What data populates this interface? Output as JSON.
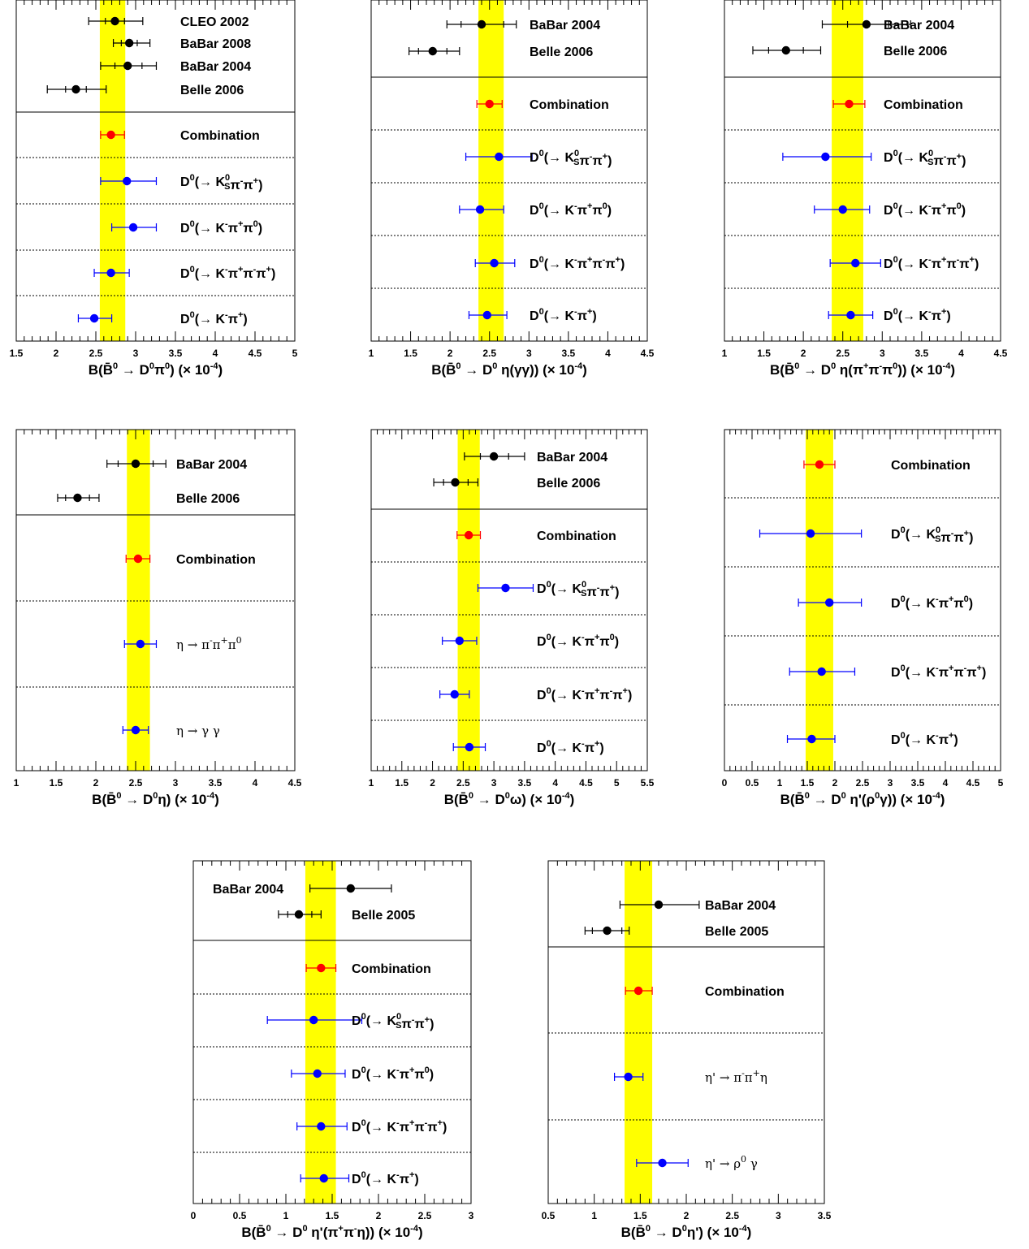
{
  "chart_data": [
    {
      "type": "scatter",
      "xlim": [
        1.5,
        5
      ],
      "ticks": [
        1.5,
        2,
        2.5,
        3,
        3.5,
        4,
        4.5,
        5
      ],
      "tick_labels": [
        "1.5",
        "2",
        "2.5",
        "3",
        "3.5",
        "4",
        "4.5",
        "5"
      ],
      "xlabel": "B(B̄⁰ → D⁰π⁰) (× 10⁻⁴)",
      "band": [
        2.55,
        2.87
      ],
      "n_exp": 4,
      "entries": [
        {
          "label": "CLEO 2002",
          "kind": "exp",
          "value": 2.74,
          "stat": [
            2.62,
            2.86
          ],
          "tot": [
            2.41,
            3.09
          ]
        },
        {
          "label": "BaBar 2008",
          "kind": "exp",
          "value": 2.92,
          "stat": [
            2.82,
            3.02
          ],
          "tot": [
            2.72,
            3.18
          ]
        },
        {
          "label": "BaBar 2004",
          "kind": "exp",
          "value": 2.9,
          "stat": [
            2.74,
            3.08
          ],
          "tot": [
            2.56,
            3.26
          ]
        },
        {
          "label": "Belle 2006",
          "kind": "exp",
          "value": 2.25,
          "stat": [
            2.12,
            2.38
          ],
          "tot": [
            1.89,
            2.63
          ]
        },
        {
          "label": "Combination",
          "kind": "comb",
          "value": 2.69,
          "stat": [
            2.56,
            2.86
          ],
          "tot": [
            2.56,
            2.86
          ]
        },
        {
          "label": "D⁰(→ K⁰S π⁻π⁺)",
          "kind": "mode",
          "value": 2.89,
          "stat": [
            2.56,
            3.26
          ],
          "tot": [
            2.56,
            3.26
          ]
        },
        {
          "label": "D⁰(→ K⁻π⁺π⁰)",
          "kind": "mode",
          "value": 2.97,
          "stat": [
            2.7,
            3.26
          ],
          "tot": [
            2.7,
            3.26
          ]
        },
        {
          "label": "D⁰(→ K⁻π⁺π⁻π⁺)",
          "kind": "mode",
          "value": 2.69,
          "stat": [
            2.48,
            2.92
          ],
          "tot": [
            2.48,
            2.92
          ]
        },
        {
          "label": "D⁰(→ K⁻π⁺)",
          "kind": "mode",
          "value": 2.48,
          "stat": [
            2.28,
            2.7
          ],
          "tot": [
            2.28,
            2.7
          ]
        }
      ]
    },
    {
      "type": "scatter",
      "xlim": [
        1,
        4.5
      ],
      "ticks": [
        1,
        1.5,
        2,
        2.5,
        3,
        3.5,
        4,
        4.5
      ],
      "tick_labels": [
        "1",
        "1.5",
        "2",
        "2.5",
        "3",
        "3.5",
        "4",
        "4.5"
      ],
      "xlabel": "B(B̄⁰ → D⁰ η(γγ)) (× 10⁻⁴)",
      "band": [
        2.36,
        2.68
      ],
      "n_exp": 2,
      "entries": [
        {
          "label": "BaBar 2004",
          "kind": "exp",
          "value": 2.4,
          "stat": [
            2.14,
            2.68
          ],
          "tot": [
            1.96,
            2.84
          ]
        },
        {
          "label": "Belle 2006",
          "kind": "exp",
          "value": 1.78,
          "stat": [
            1.6,
            1.96
          ],
          "tot": [
            1.48,
            2.12
          ]
        },
        {
          "label": "Combination",
          "kind": "comb",
          "value": 2.5,
          "stat": [
            2.34,
            2.66
          ],
          "tot": [
            2.34,
            2.66
          ]
        },
        {
          "label": "D⁰(→ K⁰S π⁻π⁺)",
          "kind": "mode",
          "value": 2.62,
          "stat": [
            2.2,
            3.04
          ],
          "tot": [
            2.2,
            3.04
          ]
        },
        {
          "label": "D⁰(→ K⁻π⁺π⁰)",
          "kind": "mode",
          "value": 2.38,
          "stat": [
            2.12,
            2.68
          ],
          "tot": [
            2.12,
            2.68
          ]
        },
        {
          "label": "D⁰(→ K⁻π⁺π⁻π⁺)",
          "kind": "mode",
          "value": 2.56,
          "stat": [
            2.32,
            2.82
          ],
          "tot": [
            2.32,
            2.82
          ]
        },
        {
          "label": "D⁰(→ K⁻π⁺)",
          "kind": "mode",
          "value": 2.47,
          "stat": [
            2.24,
            2.72
          ],
          "tot": [
            2.24,
            2.72
          ]
        }
      ]
    },
    {
      "type": "scatter",
      "xlim": [
        1,
        4.5
      ],
      "ticks": [
        1,
        1.5,
        2,
        2.5,
        3,
        3.5,
        4,
        4.5
      ],
      "tick_labels": [
        "1",
        "1.5",
        "2",
        "2.5",
        "3",
        "3.5",
        "4",
        "4.5"
      ],
      "xlabel": "B(B̄⁰ → D⁰ η(π⁺π⁻π⁰)) (× 10⁻⁴)",
      "band": [
        2.36,
        2.76
      ],
      "n_exp": 2,
      "entries": [
        {
          "label": "BaBar 2004",
          "kind": "exp",
          "value": 2.8,
          "stat": [
            2.56,
            3.08
          ],
          "tot": [
            2.24,
            3.36
          ]
        },
        {
          "label": "Belle 2006",
          "kind": "exp",
          "value": 1.78,
          "stat": [
            1.56,
            2.0
          ],
          "tot": [
            1.36,
            2.22
          ]
        },
        {
          "label": "Combination",
          "kind": "comb",
          "value": 2.58,
          "stat": [
            2.38,
            2.78
          ],
          "tot": [
            2.38,
            2.78
          ]
        },
        {
          "label": "D⁰(→ K⁰S π⁻π⁺)",
          "kind": "mode",
          "value": 2.28,
          "stat": [
            1.74,
            2.86
          ],
          "tot": [
            1.74,
            2.86
          ]
        },
        {
          "label": "D⁰(→ K⁻π⁺π⁰)",
          "kind": "mode",
          "value": 2.5,
          "stat": [
            2.14,
            2.84
          ],
          "tot": [
            2.14,
            2.84
          ]
        },
        {
          "label": "D⁰(→ K⁻π⁺π⁻π⁺)",
          "kind": "mode",
          "value": 2.66,
          "stat": [
            2.34,
            2.98
          ],
          "tot": [
            2.34,
            2.98
          ]
        },
        {
          "label": "D⁰(→ K⁻π⁺)",
          "kind": "mode",
          "value": 2.6,
          "stat": [
            2.32,
            2.88
          ],
          "tot": [
            2.32,
            2.88
          ]
        }
      ]
    },
    {
      "type": "scatter",
      "xlim": [
        1,
        4.5
      ],
      "ticks": [
        1,
        1.5,
        2,
        2.5,
        3,
        3.5,
        4,
        4.5
      ],
      "tick_labels": [
        "1",
        "1.5",
        "2",
        "2.5",
        "3",
        "3.5",
        "4",
        "4.5"
      ],
      "xlabel": "B(B̄⁰ → D⁰η) (× 10⁻⁴)",
      "band": [
        2.39,
        2.68
      ],
      "n_exp": 2,
      "entries": [
        {
          "label": "BaBar 2004",
          "kind": "exp",
          "value": 2.5,
          "stat": [
            2.28,
            2.72
          ],
          "tot": [
            2.14,
            2.88
          ]
        },
        {
          "label": "Belle 2006",
          "kind": "exp",
          "value": 1.77,
          "stat": [
            1.62,
            1.92
          ],
          "tot": [
            1.52,
            2.04
          ]
        },
        {
          "label": "Combination",
          "kind": "comb",
          "value": 2.53,
          "stat": [
            2.38,
            2.68
          ],
          "tot": [
            2.38,
            2.68
          ]
        },
        {
          "label": "η → π⁻π⁺π⁰",
          "kind": "mode",
          "plain": true,
          "value": 2.56,
          "stat": [
            2.36,
            2.76
          ],
          "tot": [
            2.36,
            2.76
          ]
        },
        {
          "label": "η → γ γ",
          "kind": "mode",
          "plain": true,
          "value": 2.5,
          "stat": [
            2.34,
            2.66
          ],
          "tot": [
            2.34,
            2.66
          ]
        }
      ]
    },
    {
      "type": "scatter",
      "xlim": [
        1,
        5.5
      ],
      "ticks": [
        1,
        1.5,
        2,
        2.5,
        3,
        3.5,
        4,
        4.5,
        5,
        5.5
      ],
      "tick_labels": [
        "1",
        "1.5",
        "2",
        "2.5",
        "3",
        "3.5",
        "4",
        "4.5",
        "5",
        "5.5"
      ],
      "xlabel": "B(B̄⁰ → D⁰ω) (× 10⁻⁴)",
      "band": [
        2.41,
        2.77
      ],
      "n_exp": 2,
      "entries": [
        {
          "label": "BaBar 2004",
          "kind": "exp",
          "value": 3.0,
          "stat": [
            2.78,
            3.24
          ],
          "tot": [
            2.52,
            3.5
          ]
        },
        {
          "label": "Belle 2006",
          "kind": "exp",
          "value": 2.37,
          "stat": [
            2.18,
            2.58
          ],
          "tot": [
            2.02,
            2.74
          ]
        },
        {
          "label": "Combination",
          "kind": "comb",
          "value": 2.59,
          "stat": [
            2.4,
            2.78
          ],
          "tot": [
            2.4,
            2.78
          ]
        },
        {
          "label": "D⁰(→ K⁰S π⁻π⁺)",
          "kind": "mode",
          "value": 3.19,
          "stat": [
            2.74,
            3.64
          ],
          "tot": [
            2.74,
            3.64
          ]
        },
        {
          "label": "D⁰(→ K⁻π⁺π⁰)",
          "kind": "mode",
          "value": 2.44,
          "stat": [
            2.16,
            2.72
          ],
          "tot": [
            2.16,
            2.72
          ]
        },
        {
          "label": "D⁰(→ K⁻π⁺π⁻π⁺)",
          "kind": "mode",
          "value": 2.36,
          "stat": [
            2.12,
            2.6
          ],
          "tot": [
            2.12,
            2.6
          ]
        },
        {
          "label": "D⁰(→ K⁻π⁺)",
          "kind": "mode",
          "value": 2.6,
          "stat": [
            2.34,
            2.86
          ],
          "tot": [
            2.34,
            2.86
          ]
        }
      ]
    },
    {
      "type": "scatter",
      "xlim": [
        0,
        5
      ],
      "ticks": [
        0,
        0.5,
        1,
        1.5,
        2,
        2.5,
        3,
        3.5,
        4,
        4.5,
        5
      ],
      "tick_labels": [
        "0",
        "0.5",
        "1",
        "1.5",
        "2",
        "2.5",
        "3",
        "3.5",
        "4",
        "4.5",
        "5"
      ],
      "xlabel": "B(B̄⁰ → D⁰ η'(ρ⁰γ)) (× 10⁻⁴)",
      "band": [
        1.47,
        1.97
      ],
      "n_exp": 0,
      "entries": [
        {
          "label": "Combination",
          "kind": "comb",
          "value": 1.72,
          "stat": [
            1.44,
            2.0
          ],
          "tot": [
            1.44,
            2.0
          ]
        },
        {
          "label": "D⁰(→ K⁰S π⁻π⁺)",
          "kind": "mode",
          "value": 1.56,
          "stat": [
            0.64,
            2.48
          ],
          "tot": [
            0.64,
            2.48
          ]
        },
        {
          "label": "D⁰(→ K⁻π⁺π⁰)",
          "kind": "mode",
          "value": 1.9,
          "stat": [
            1.34,
            2.48
          ],
          "tot": [
            1.34,
            2.48
          ]
        },
        {
          "label": "D⁰(→ K⁻π⁺π⁻π⁺)",
          "kind": "mode",
          "value": 1.76,
          "stat": [
            1.18,
            2.36
          ],
          "tot": [
            1.18,
            2.36
          ]
        },
        {
          "label": "D⁰(→ K⁻π⁺)",
          "kind": "mode",
          "value": 1.58,
          "stat": [
            1.14,
            2.0
          ],
          "tot": [
            1.14,
            2.0
          ]
        }
      ]
    },
    {
      "type": "scatter",
      "xlim": [
        0,
        3
      ],
      "ticks": [
        0,
        0.5,
        1,
        1.5,
        2,
        2.5,
        3
      ],
      "tick_labels": [
        "0",
        "0.5",
        "1",
        "1.5",
        "2",
        "2.5",
        "3"
      ],
      "xlabel": "B(B̄⁰ → D⁰ η'(π⁺π⁻η)) (× 10⁻⁴)",
      "band": [
        1.21,
        1.54
      ],
      "n_exp": 2,
      "entries": [
        {
          "label": "BaBar 2004",
          "kind": "exp",
          "value": 1.7,
          "stat": [
            1.26,
            2.14
          ],
          "tot": [
            1.26,
            2.14
          ]
        },
        {
          "label": "Belle 2005",
          "kind": "exp",
          "value": 1.14,
          "stat": [
            1.02,
            1.28
          ],
          "tot": [
            0.92,
            1.38
          ]
        },
        {
          "label": "Combination",
          "kind": "comb",
          "value": 1.38,
          "stat": [
            1.22,
            1.54
          ],
          "tot": [
            1.22,
            1.54
          ]
        },
        {
          "label": "D⁰(→ K⁰S π⁻π⁺)",
          "kind": "mode",
          "value": 1.3,
          "stat": [
            0.8,
            1.82
          ],
          "tot": [
            0.8,
            1.82
          ]
        },
        {
          "label": "D⁰(→ K⁻π⁺π⁰)",
          "kind": "mode",
          "value": 1.34,
          "stat": [
            1.06,
            1.64
          ],
          "tot": [
            1.06,
            1.64
          ]
        },
        {
          "label": "D⁰(→ K⁻π⁺π⁻π⁺)",
          "kind": "mode",
          "value": 1.38,
          "stat": [
            1.12,
            1.66
          ],
          "tot": [
            1.12,
            1.66
          ]
        },
        {
          "label": "D⁰(→ K⁻π⁺)",
          "kind": "mode",
          "value": 1.41,
          "stat": [
            1.16,
            1.68
          ],
          "tot": [
            1.16,
            1.68
          ]
        }
      ]
    },
    {
      "type": "scatter",
      "xlim": [
        0.5,
        3.5
      ],
      "ticks": [
        0.5,
        1,
        1.5,
        2,
        2.5,
        3,
        3.5
      ],
      "tick_labels": [
        "0.5",
        "1",
        "1.5",
        "2",
        "2.5",
        "3",
        "3.5"
      ],
      "xlabel": "B(B̄⁰ → D⁰η') (× 10⁻⁴)",
      "band": [
        1.33,
        1.63
      ],
      "n_exp": 2,
      "entries": [
        {
          "label": "BaBar 2004",
          "kind": "exp",
          "value": 1.7,
          "stat": [
            1.28,
            2.14
          ],
          "tot": [
            1.28,
            2.14
          ]
        },
        {
          "label": "Belle 2005",
          "kind": "exp",
          "value": 1.14,
          "stat": [
            0.98,
            1.3
          ],
          "tot": [
            0.9,
            1.38
          ]
        },
        {
          "label": "Combination",
          "kind": "comb",
          "value": 1.48,
          "stat": [
            1.34,
            1.63
          ],
          "tot": [
            1.34,
            1.63
          ]
        },
        {
          "label": "η' → π⁻π⁺η",
          "kind": "mode",
          "plain": true,
          "value": 1.37,
          "stat": [
            1.22,
            1.53
          ],
          "tot": [
            1.22,
            1.53
          ]
        },
        {
          "label": "η' → ρ⁰ γ",
          "kind": "mode",
          "plain": true,
          "value": 1.74,
          "stat": [
            1.46,
            2.02
          ],
          "tot": [
            1.46,
            2.02
          ]
        }
      ]
    }
  ]
}
